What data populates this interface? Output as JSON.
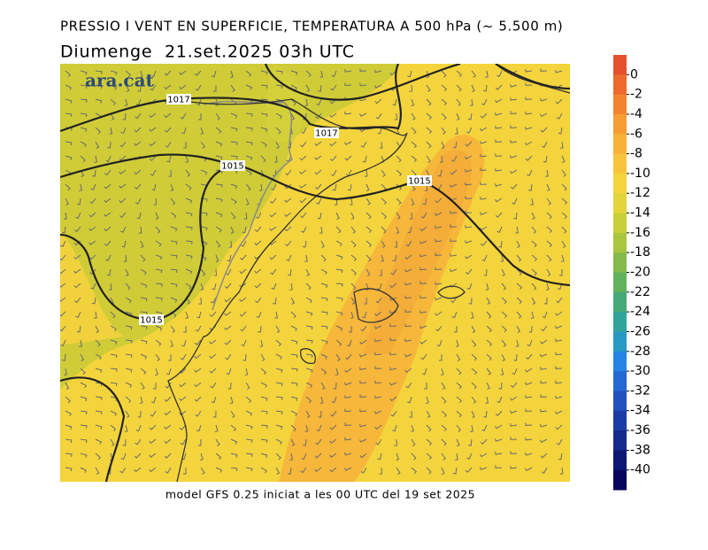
{
  "header": {
    "title": "PRESSIO I VENT EN SUPERFICIE, TEMPERATURA A 500 hPa (~ 5.500 m)",
    "date": "Diumenge  21.set.2025 03h UTC"
  },
  "logo": "ara.cat",
  "isobar_labels": [
    "1017",
    "1017",
    "1015",
    "1015",
    "1015"
  ],
  "footer": "model GFS 0.25 iniciat a les 00 UTC del 19 set 2025",
  "colorbar": {
    "range": [
      2,
      -42
    ],
    "ticks": [
      0,
      -2,
      -4,
      -6,
      -8,
      -10,
      -12,
      -14,
      -16,
      -18,
      -20,
      -22,
      -24,
      -26,
      -28,
      -30,
      -32,
      -34,
      -36,
      -38,
      -40
    ],
    "colors": [
      "#e4502a",
      "#ec6a2c",
      "#f3842e",
      "#f69d34",
      "#f8b23a",
      "#f7c43c",
      "#f4d43c",
      "#e2d43a",
      "#c9cf38",
      "#a9c63e",
      "#85bb4a",
      "#62b25c",
      "#46aa78",
      "#30a49a",
      "#2898c4",
      "#2684e4",
      "#2468d4",
      "#2050bc",
      "#1a3ca4",
      "#142a8c",
      "#0c1874",
      "#08065c"
    ]
  }
}
